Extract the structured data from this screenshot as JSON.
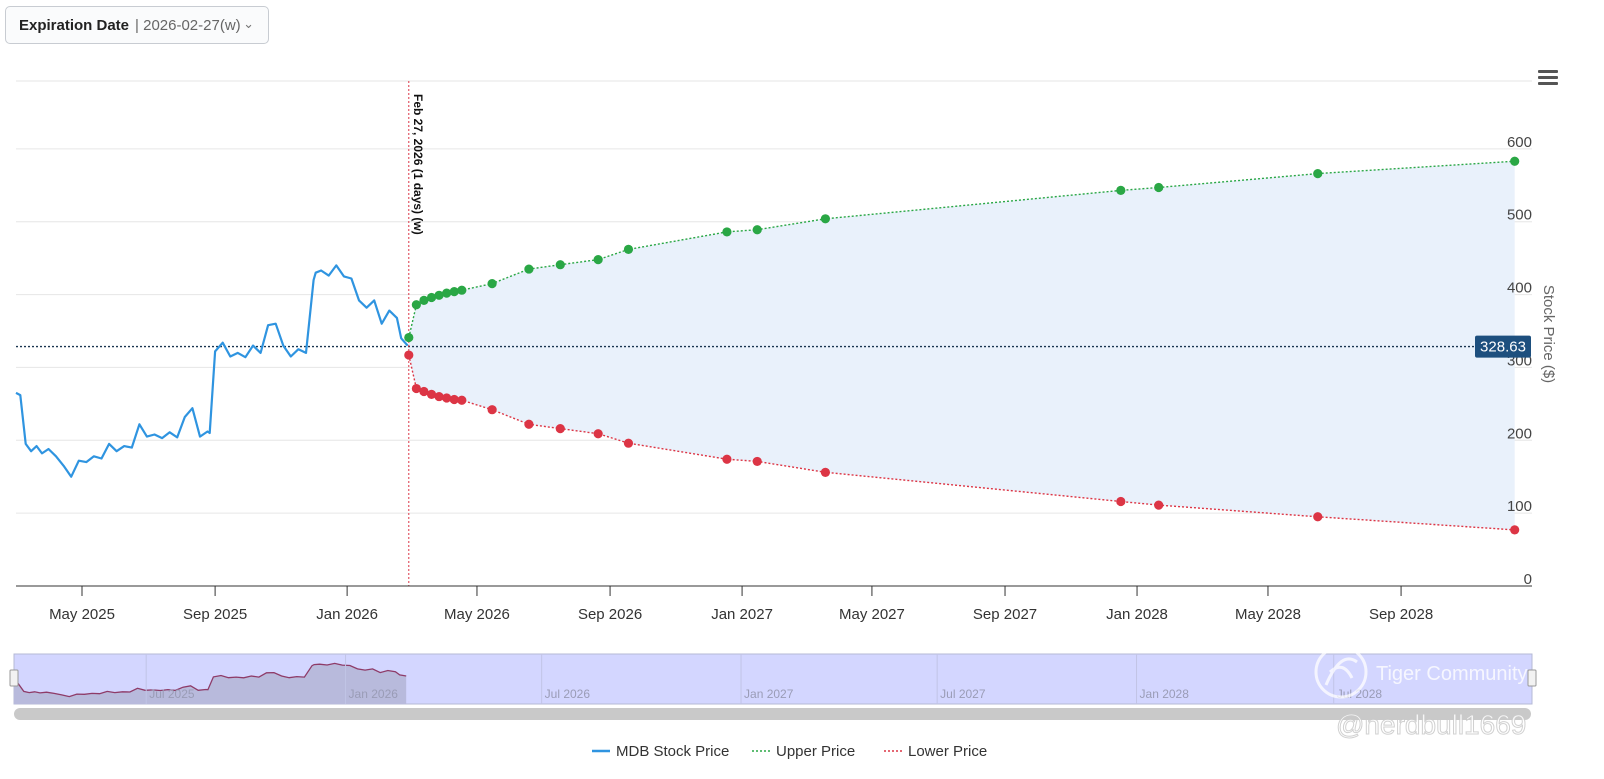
{
  "expiration": {
    "label": "Expiration Date",
    "value": "| 2026-02-27(w)",
    "chevron_icon": "chevron-down-icon"
  },
  "menu_icon": "hamburger-menu-icon",
  "watermark": {
    "brand": "Tiger Community",
    "handle": "@nerdbull1669"
  },
  "colors": {
    "price": "#2f94e0",
    "upper": "#2aa745",
    "lower": "#dc3545",
    "band": "#e9f1fb",
    "navigator": "#d3d6ff",
    "current_label_bg": "#1d4f7e"
  },
  "chart_data": {
    "type": "line",
    "ylabel": "Stock Price ($)",
    "ylim": [
      0,
      700
    ],
    "y_ticks": [
      0,
      100,
      200,
      300,
      400,
      500,
      600
    ],
    "xlim": [
      "2025-03-01",
      "2028-12-31"
    ],
    "x_ticks": [
      {
        "date": "2025-05-01",
        "label": "May 2025"
      },
      {
        "date": "2025-09-01",
        "label": "Sep 2025"
      },
      {
        "date": "2026-01-01",
        "label": "Jan 2026"
      },
      {
        "date": "2026-05-01",
        "label": "May 2026"
      },
      {
        "date": "2026-09-01",
        "label": "Sep 2026"
      },
      {
        "date": "2027-01-01",
        "label": "Jan 2027"
      },
      {
        "date": "2027-05-01",
        "label": "May 2027"
      },
      {
        "date": "2027-09-01",
        "label": "Sep 2027"
      },
      {
        "date": "2028-01-01",
        "label": "Jan 2028"
      },
      {
        "date": "2028-05-01",
        "label": "May 2028"
      },
      {
        "date": "2028-09-01",
        "label": "Sep 2028"
      }
    ],
    "current_price": 328.63,
    "expiration_marker": {
      "date": "2026-02-27",
      "label": "Feb 27, 2026 (1 days) (w)"
    },
    "series": [
      {
        "name": "MDB Stock Price",
        "x": [
          "2025-03-01",
          "2025-03-05",
          "2025-03-10",
          "2025-03-15",
          "2025-03-20",
          "2025-03-25",
          "2025-03-31",
          "2025-04-07",
          "2025-04-14",
          "2025-04-21",
          "2025-04-28",
          "2025-05-05",
          "2025-05-12",
          "2025-05-19",
          "2025-05-26",
          "2025-06-02",
          "2025-06-09",
          "2025-06-16",
          "2025-06-23",
          "2025-06-30",
          "2025-07-07",
          "2025-07-14",
          "2025-07-21",
          "2025-07-28",
          "2025-08-04",
          "2025-08-11",
          "2025-08-18",
          "2025-08-25",
          "2025-08-27",
          "2025-09-01",
          "2025-09-08",
          "2025-09-15",
          "2025-09-22",
          "2025-09-29",
          "2025-10-06",
          "2025-10-13",
          "2025-10-20",
          "2025-10-27",
          "2025-11-03",
          "2025-11-10",
          "2025-11-17",
          "2025-11-24",
          "2025-12-01",
          "2025-12-03",
          "2025-12-08",
          "2025-12-15",
          "2025-12-22",
          "2025-12-29",
          "2026-01-05",
          "2026-01-12",
          "2026-01-19",
          "2026-01-26",
          "2026-02-02",
          "2026-02-09",
          "2026-02-16",
          "2026-02-20",
          "2026-02-26"
        ],
        "values": [
          265,
          262,
          195,
          185,
          192,
          182,
          188,
          178,
          165,
          150,
          172,
          170,
          178,
          175,
          195,
          185,
          192,
          190,
          222,
          205,
          208,
          203,
          211,
          204,
          232,
          244,
          205,
          212,
          210,
          322,
          334,
          315,
          320,
          314,
          330,
          320,
          358,
          360,
          330,
          315,
          325,
          320,
          420,
          430,
          433,
          426,
          440,
          425,
          422,
          392,
          382,
          392,
          360,
          378,
          368,
          340,
          330
        ]
      },
      {
        "name": "Upper Price",
        "x": [
          "2026-02-27",
          "2026-03-06",
          "2026-03-13",
          "2026-03-20",
          "2026-03-27",
          "2026-04-03",
          "2026-04-10",
          "2026-04-17",
          "2026-05-15",
          "2026-06-18",
          "2026-07-17",
          "2026-08-21",
          "2026-09-18",
          "2026-12-18",
          "2027-01-15",
          "2027-03-19",
          "2027-12-17",
          "2028-01-21",
          "2028-06-16",
          "2028-12-15"
        ],
        "values": [
          341,
          386,
          392,
          396,
          399,
          402,
          404,
          406,
          415,
          435,
          441,
          448,
          462,
          486,
          489,
          504,
          543,
          547,
          566,
          583
        ]
      },
      {
        "name": "Lower Price",
        "x": [
          "2026-02-27",
          "2026-03-06",
          "2026-03-13",
          "2026-03-20",
          "2026-03-27",
          "2026-04-03",
          "2026-04-10",
          "2026-04-17",
          "2026-05-15",
          "2026-06-18",
          "2026-07-17",
          "2026-08-21",
          "2026-09-18",
          "2026-12-18",
          "2027-01-15",
          "2027-03-19",
          "2027-12-17",
          "2028-01-21",
          "2028-06-16",
          "2028-12-15"
        ],
        "values": [
          317,
          271,
          267,
          263,
          260,
          258,
          256,
          255,
          242,
          222,
          216,
          209,
          196,
          174,
          171,
          156,
          116,
          111,
          95,
          77
        ]
      }
    ],
    "navigator": {
      "labels": [
        {
          "date": "2025-07-01",
          "label": "Jul 2025"
        },
        {
          "date": "2026-01-01",
          "label": "Jan 2026"
        },
        {
          "date": "2026-07-01",
          "label": "Jul 2026"
        },
        {
          "date": "2027-01-01",
          "label": "Jan 2027"
        },
        {
          "date": "2027-07-01",
          "label": "Jul 2027"
        },
        {
          "date": "2028-01-01",
          "label": "Jan 2028"
        },
        {
          "date": "2028-07-01",
          "label": "Jul 2028"
        }
      ]
    },
    "legend": {
      "placement": "bottom-center"
    }
  }
}
